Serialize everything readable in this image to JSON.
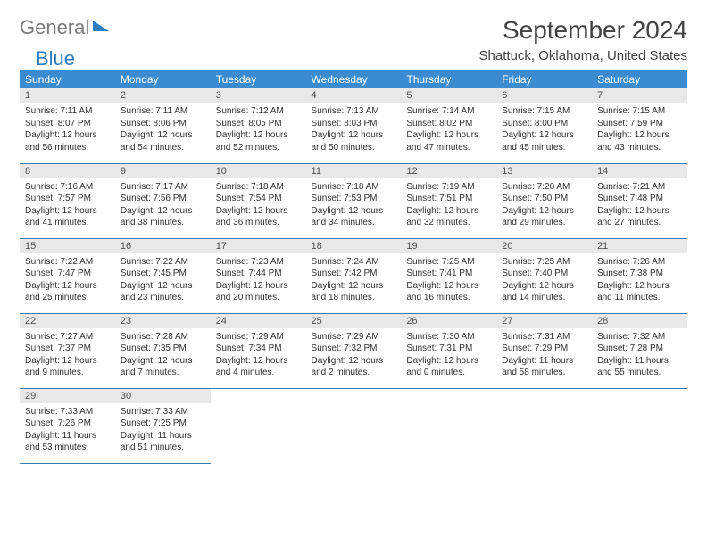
{
  "logo": {
    "part1": "General",
    "part2": "Blue"
  },
  "title": "September 2024",
  "location": "Shattuck, Oklahoma, United States",
  "colors": {
    "header_bg": "#3a8bd0",
    "header_text": "#ffffff",
    "daynum_bg": "#e8e8e8",
    "daynum_text": "#505050",
    "body_text": "#303030",
    "rule": "#3a7bb0",
    "logo_gray": "#7a7a7a",
    "logo_blue": "#2d7bc0"
  },
  "typography": {
    "title_fontsize": 28,
    "subtitle_fontsize": 15,
    "header_fontsize": 12,
    "daynum_fontsize": 11,
    "cell_fontsize": 10
  },
  "weekdays": [
    "Sunday",
    "Monday",
    "Tuesday",
    "Wednesday",
    "Thursday",
    "Friday",
    "Saturday"
  ],
  "weeks": [
    [
      {
        "n": "1",
        "sr": "7:11 AM",
        "ss": "8:07 PM",
        "dl": "12 hours and 56 minutes."
      },
      {
        "n": "2",
        "sr": "7:11 AM",
        "ss": "8:06 PM",
        "dl": "12 hours and 54 minutes."
      },
      {
        "n": "3",
        "sr": "7:12 AM",
        "ss": "8:05 PM",
        "dl": "12 hours and 52 minutes."
      },
      {
        "n": "4",
        "sr": "7:13 AM",
        "ss": "8:03 PM",
        "dl": "12 hours and 50 minutes."
      },
      {
        "n": "5",
        "sr": "7:14 AM",
        "ss": "8:02 PM",
        "dl": "12 hours and 47 minutes."
      },
      {
        "n": "6",
        "sr": "7:15 AM",
        "ss": "8:00 PM",
        "dl": "12 hours and 45 minutes."
      },
      {
        "n": "7",
        "sr": "7:15 AM",
        "ss": "7:59 PM",
        "dl": "12 hours and 43 minutes."
      }
    ],
    [
      {
        "n": "8",
        "sr": "7:16 AM",
        "ss": "7:57 PM",
        "dl": "12 hours and 41 minutes."
      },
      {
        "n": "9",
        "sr": "7:17 AM",
        "ss": "7:56 PM",
        "dl": "12 hours and 38 minutes."
      },
      {
        "n": "10",
        "sr": "7:18 AM",
        "ss": "7:54 PM",
        "dl": "12 hours and 36 minutes."
      },
      {
        "n": "11",
        "sr": "7:18 AM",
        "ss": "7:53 PM",
        "dl": "12 hours and 34 minutes."
      },
      {
        "n": "12",
        "sr": "7:19 AM",
        "ss": "7:51 PM",
        "dl": "12 hours and 32 minutes."
      },
      {
        "n": "13",
        "sr": "7:20 AM",
        "ss": "7:50 PM",
        "dl": "12 hours and 29 minutes."
      },
      {
        "n": "14",
        "sr": "7:21 AM",
        "ss": "7:48 PM",
        "dl": "12 hours and 27 minutes."
      }
    ],
    [
      {
        "n": "15",
        "sr": "7:22 AM",
        "ss": "7:47 PM",
        "dl": "12 hours and 25 minutes."
      },
      {
        "n": "16",
        "sr": "7:22 AM",
        "ss": "7:45 PM",
        "dl": "12 hours and 23 minutes."
      },
      {
        "n": "17",
        "sr": "7:23 AM",
        "ss": "7:44 PM",
        "dl": "12 hours and 20 minutes."
      },
      {
        "n": "18",
        "sr": "7:24 AM",
        "ss": "7:42 PM",
        "dl": "12 hours and 18 minutes."
      },
      {
        "n": "19",
        "sr": "7:25 AM",
        "ss": "7:41 PM",
        "dl": "12 hours and 16 minutes."
      },
      {
        "n": "20",
        "sr": "7:25 AM",
        "ss": "7:40 PM",
        "dl": "12 hours and 14 minutes."
      },
      {
        "n": "21",
        "sr": "7:26 AM",
        "ss": "7:38 PM",
        "dl": "12 hours and 11 minutes."
      }
    ],
    [
      {
        "n": "22",
        "sr": "7:27 AM",
        "ss": "7:37 PM",
        "dl": "12 hours and 9 minutes."
      },
      {
        "n": "23",
        "sr": "7:28 AM",
        "ss": "7:35 PM",
        "dl": "12 hours and 7 minutes."
      },
      {
        "n": "24",
        "sr": "7:29 AM",
        "ss": "7:34 PM",
        "dl": "12 hours and 4 minutes."
      },
      {
        "n": "25",
        "sr": "7:29 AM",
        "ss": "7:32 PM",
        "dl": "12 hours and 2 minutes."
      },
      {
        "n": "26",
        "sr": "7:30 AM",
        "ss": "7:31 PM",
        "dl": "12 hours and 0 minutes."
      },
      {
        "n": "27",
        "sr": "7:31 AM",
        "ss": "7:29 PM",
        "dl": "11 hours and 58 minutes."
      },
      {
        "n": "28",
        "sr": "7:32 AM",
        "ss": "7:28 PM",
        "dl": "11 hours and 55 minutes."
      }
    ],
    [
      {
        "n": "29",
        "sr": "7:33 AM",
        "ss": "7:26 PM",
        "dl": "11 hours and 53 minutes."
      },
      {
        "n": "30",
        "sr": "7:33 AM",
        "ss": "7:25 PM",
        "dl": "11 hours and 51 minutes."
      },
      null,
      null,
      null,
      null,
      null
    ]
  ],
  "labels": {
    "sunrise": "Sunrise:",
    "sunset": "Sunset:",
    "daylight": "Daylight:"
  }
}
